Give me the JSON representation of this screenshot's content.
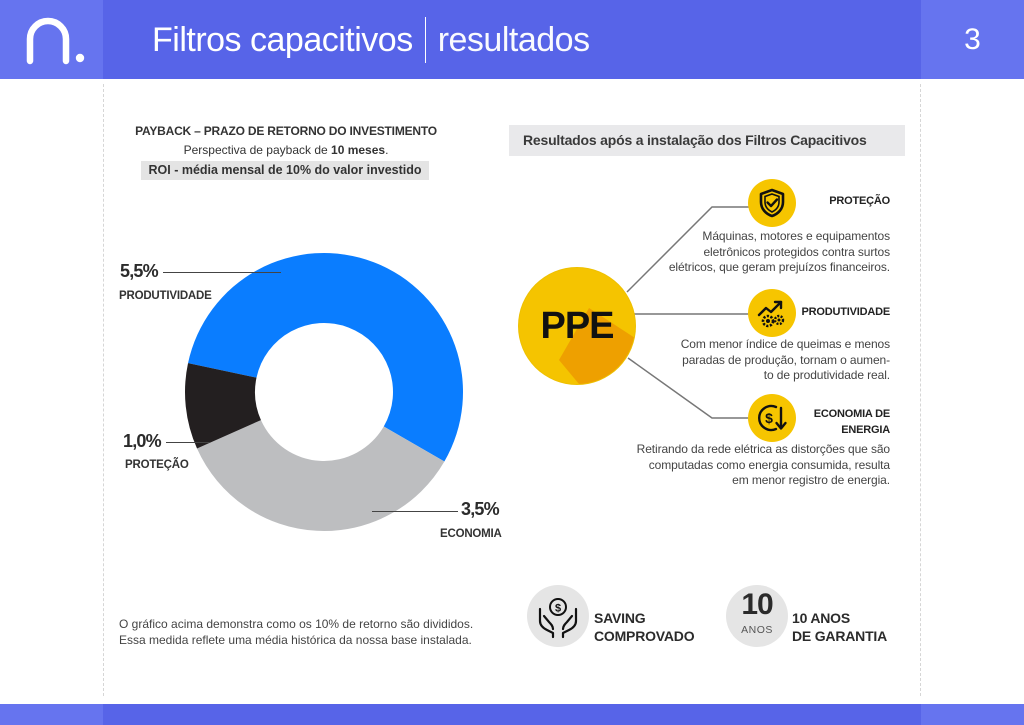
{
  "header": {
    "title": "Filtros capacitivos",
    "subtitle": "resultados",
    "page_number": "3",
    "logo_icon": "brand-n-logo"
  },
  "colors": {
    "header_blue": "#5764e8",
    "header_side": "#6674ef",
    "produtividade": "#0a7dff",
    "economia": "#bdbec0",
    "protecao": "#231f20",
    "accent_yellow": "#f6c500"
  },
  "payback": {
    "title": "PAYBACK – PRAZO DE RETORNO DO INVESTIMENTO",
    "subtitle_prefix": "Perspectiva de payback de ",
    "subtitle_bold": "10 meses",
    "subtitle_suffix": ".",
    "roi": "ROI - média mensal de 10% do valor investido"
  },
  "chart_data": {
    "type": "pie",
    "style": "donut",
    "series": [
      {
        "name": "PRODUTIVIDADE",
        "label": "5,5%",
        "value": 5.5,
        "color": "#0a7dff"
      },
      {
        "name": "ECONOMIA",
        "label": "3,5%",
        "value": 3.5,
        "color": "#bdbec0"
      },
      {
        "name": "PROTEÇÃO",
        "label": "1,0%",
        "value": 1.0,
        "color": "#231f20"
      }
    ],
    "total": 10
  },
  "note": {
    "line1": "O gráfico acima demonstra como os 10% de retorno são divididos.",
    "line2": "Essa medida reflete uma média histórica da nossa base instalada."
  },
  "results": {
    "heading": "Resultados após a instalação dos Filtros Capacitivos",
    "center": "PPE",
    "features": [
      {
        "icon": "shield-check-icon",
        "title": "PROTEÇÃO",
        "desc": [
          "Máquinas, motores e equipamentos",
          "eletrônicos protegidos contra surtos",
          "elétricos, que geram prejuízos financeiros."
        ]
      },
      {
        "icon": "growth-gears-icon",
        "title": "PRODUTIVIDADE",
        "desc": [
          "Com menor índice de queimas e menos",
          "paradas de produção, tornam o aumen-",
          "to de produtividade real."
        ]
      },
      {
        "icon": "dollar-down-icon",
        "title_lines": [
          "ECONOMIA DE",
          "ENERGIA"
        ],
        "desc": [
          "Retirando da rede elétrica as distorções que são",
          "computadas como energia consumida, resulta",
          "em menor registro de energia."
        ]
      }
    ]
  },
  "badges": {
    "saving": {
      "icon": "hands-money-icon",
      "line1": "SAVING",
      "line2": "COMPROVADO"
    },
    "warranty": {
      "number": "10",
      "unit": "ANOS",
      "line1": "10 ANOS",
      "line2": "DE GARANTIA"
    }
  }
}
